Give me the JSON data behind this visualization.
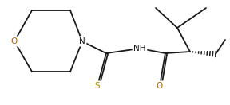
{
  "bg_color": "#ffffff",
  "line_color": "#1a1a1a",
  "atom_colors": {
    "O": "#b36200",
    "N": "#1a1a1a",
    "S": "#b38600",
    "H": "#1a1a1a"
  },
  "line_width": 1.3,
  "font_size": 7.5,
  "fig_width": 2.88,
  "fig_height": 1.32,
  "dpi": 100,
  "xlim": [
    0,
    288
  ],
  "ylim": [
    0,
    132
  ]
}
